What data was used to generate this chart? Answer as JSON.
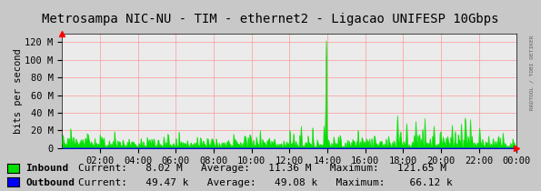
{
  "title": "Metrosampa NIC-NU - TIM - ethernet2 - Ligacao UNIFESP 10Gbps",
  "ylabel": "bits per second",
  "bg_color": "#c8c8c8",
  "plot_bg_color": "#ebebeb",
  "grid_color": "#ff9999",
  "yticks": [
    0,
    20000000,
    40000000,
    60000000,
    80000000,
    100000000,
    120000000
  ],
  "ytick_labels": [
    "0",
    "20 M",
    "40 M",
    "60 M",
    "80 M",
    "100 M",
    "120 M"
  ],
  "xtick_labels": [
    "02:00",
    "04:00",
    "06:00",
    "08:00",
    "10:00",
    "12:00",
    "14:00",
    "16:00",
    "18:00",
    "20:00",
    "22:00",
    "00:00"
  ],
  "ymax": 130000000,
  "inbound_color": "#00e000",
  "outbound_color": "#0000ff",
  "legend_inbound": "Inbound",
  "legend_outbound": "Outbound",
  "inbound_current": "8.02 M",
  "inbound_average": "11.36 M",
  "inbound_maximum": "121.65 M",
  "outbound_current": "49.47 k",
  "outbound_average": "49.08 k",
  "outbound_maximum": "66.12 k",
  "watermark": "RRDTOOL / TOBI OETIKER",
  "title_fontsize": 10,
  "axis_fontsize": 7.5,
  "legend_fontsize": 8
}
